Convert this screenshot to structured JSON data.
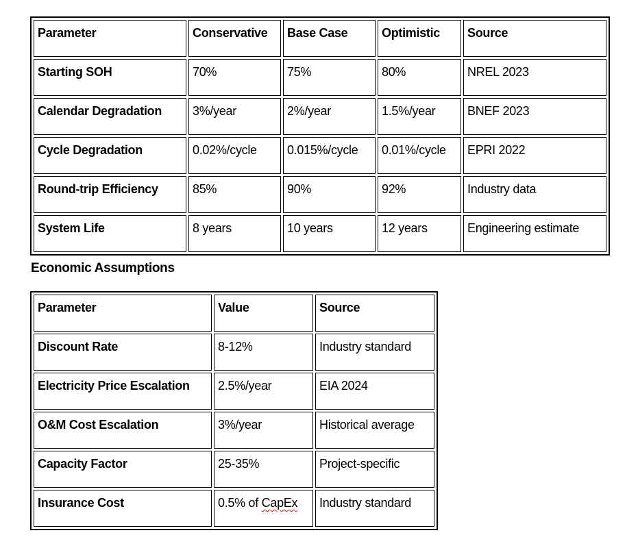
{
  "heading": "Economic Assumptions",
  "colors": {
    "background": "#ffffff",
    "text": "#000000",
    "table_border": "#000000",
    "spell_underline": "#e01010"
  },
  "table1": {
    "columns": [
      "Parameter",
      "Conservative",
      "Base Case",
      "Optimistic",
      "Source"
    ],
    "rows": [
      [
        "Starting SOH",
        "70%",
        "75%",
        "80%",
        "NREL 2023"
      ],
      [
        "Calendar Degradation",
        "3%/year",
        "2%/year",
        "1.5%/year",
        "BNEF 2023"
      ],
      [
        "Cycle Degradation",
        "0.02%/cycle",
        "0.015%/cycle",
        "0.01%/cycle",
        "EPRI 2022"
      ],
      [
        "Round-trip Efficiency",
        "85%",
        "90%",
        "92%",
        "Industry data"
      ],
      [
        "System Life",
        "8 years",
        "10 years",
        "12 years",
        "Engineering estimate"
      ]
    ]
  },
  "table2": {
    "columns": [
      "Parameter",
      "Value",
      "Source"
    ],
    "rows": [
      [
        "Discount Rate",
        "8-12%",
        "Industry standard"
      ],
      [
        "Electricity Price Escalation",
        "2.5%/year",
        "EIA 2024"
      ],
      [
        "O&M Cost Escalation",
        "3%/year",
        "Historical average"
      ],
      [
        "Capacity Factor",
        "25-35%",
        "Project-specific"
      ],
      [
        "Insurance Cost",
        "0.5% of CapEx",
        "Industry standard"
      ]
    ],
    "spell_error_word": "CapEx"
  }
}
